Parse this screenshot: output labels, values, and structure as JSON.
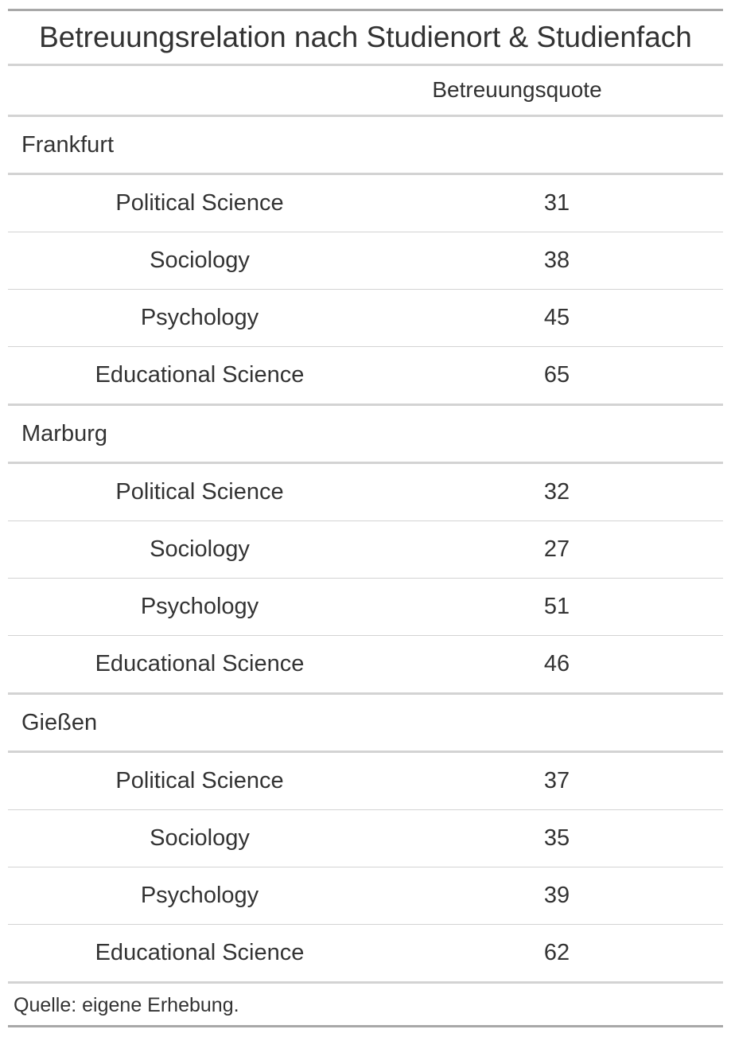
{
  "table": {
    "title": "Betreuungsrelation nach Studienort & Studienfach",
    "column_header": "Betreuungsquote",
    "groups": [
      {
        "name": "Frankfurt",
        "rows": [
          {
            "subject": "Political Science",
            "value": "31"
          },
          {
            "subject": "Sociology",
            "value": "38"
          },
          {
            "subject": "Psychology",
            "value": "45"
          },
          {
            "subject": "Educational Science",
            "value": "65"
          }
        ]
      },
      {
        "name": "Marburg",
        "rows": [
          {
            "subject": "Political Science",
            "value": "32"
          },
          {
            "subject": "Sociology",
            "value": "27"
          },
          {
            "subject": "Psychology",
            "value": "51"
          },
          {
            "subject": "Educational Science",
            "value": "46"
          }
        ]
      },
      {
        "name": "Gießen",
        "rows": [
          {
            "subject": "Political Science",
            "value": "37"
          },
          {
            "subject": "Sociology",
            "value": "35"
          },
          {
            "subject": "Psychology",
            "value": "39"
          },
          {
            "subject": "Educational Science",
            "value": "62"
          }
        ]
      }
    ],
    "source_note": "Quelle: eigene Erhebung."
  },
  "colors": {
    "text": "#333333",
    "rule_outer": "#a8a8a8",
    "rule_inner": "#d3d3d3"
  }
}
